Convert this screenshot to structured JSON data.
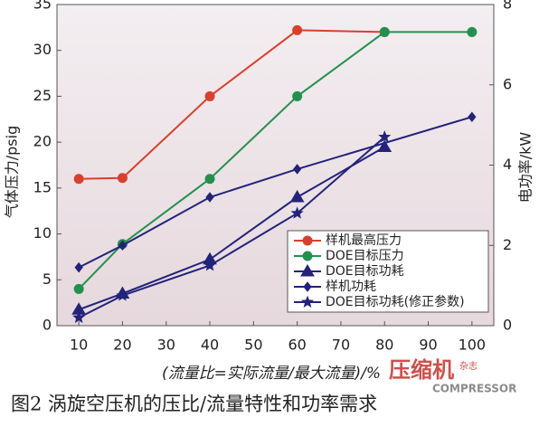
{
  "chart_data": {
    "type": "line",
    "caption": "图2 涡旋空压机的压比/流量特性和功率需求",
    "xlabel": "(流量比=实际流量/最大流量)/%",
    "ylabel": "气体压力/psig",
    "y2label": "电功率/kW",
    "xlim": [
      5,
      105
    ],
    "xticks": [
      10,
      20,
      30,
      40,
      50,
      60,
      70,
      80,
      90,
      100
    ],
    "ylim": [
      0,
      35
    ],
    "yticks": [
      0,
      5,
      10,
      15,
      20,
      25,
      30,
      35
    ],
    "y2lim": [
      0,
      8
    ],
    "y2ticks": [
      0,
      2,
      4,
      6,
      8
    ],
    "legend": "lower right",
    "series": [
      {
        "name": "样机最高压力",
        "color": "#d8402c",
        "marker": "circle",
        "x": [
          10,
          20,
          40,
          60,
          80
        ],
        "values": [
          16,
          16.1,
          25,
          32.2,
          32
        ]
      },
      {
        "name": "DOE目标压力",
        "color": "#23914e",
        "marker": "circle",
        "x": [
          10,
          20,
          40,
          60,
          80,
          100
        ],
        "values": [
          4,
          8.9,
          16,
          25,
          32,
          32
        ]
      },
      {
        "name": "DOE目标功耗",
        "color": "#23237a",
        "marker": "triangle",
        "axis": "y2",
        "x": [
          10,
          20,
          40,
          60,
          80
        ],
        "values": [
          0.4,
          0.8,
          1.65,
          3.2,
          4.45
        ]
      },
      {
        "name": "样机功耗",
        "color": "#23237a",
        "marker": "diamond",
        "axis": "y2",
        "x": [
          10,
          20,
          40,
          60,
          100
        ],
        "values": [
          1.45,
          2,
          3.2,
          3.9,
          5.2
        ]
      },
      {
        "name": "DOE目标功耗(修正参数)",
        "color": "#23237a",
        "marker": "star",
        "axis": "y2",
        "x": [
          10,
          20,
          40,
          60,
          80
        ],
        "values": [
          0.2,
          0.75,
          1.5,
          2.8,
          4.7
        ]
      }
    ],
    "watermark": [
      "压缩机",
      "杂志",
      "COMPRESSOR"
    ]
  }
}
